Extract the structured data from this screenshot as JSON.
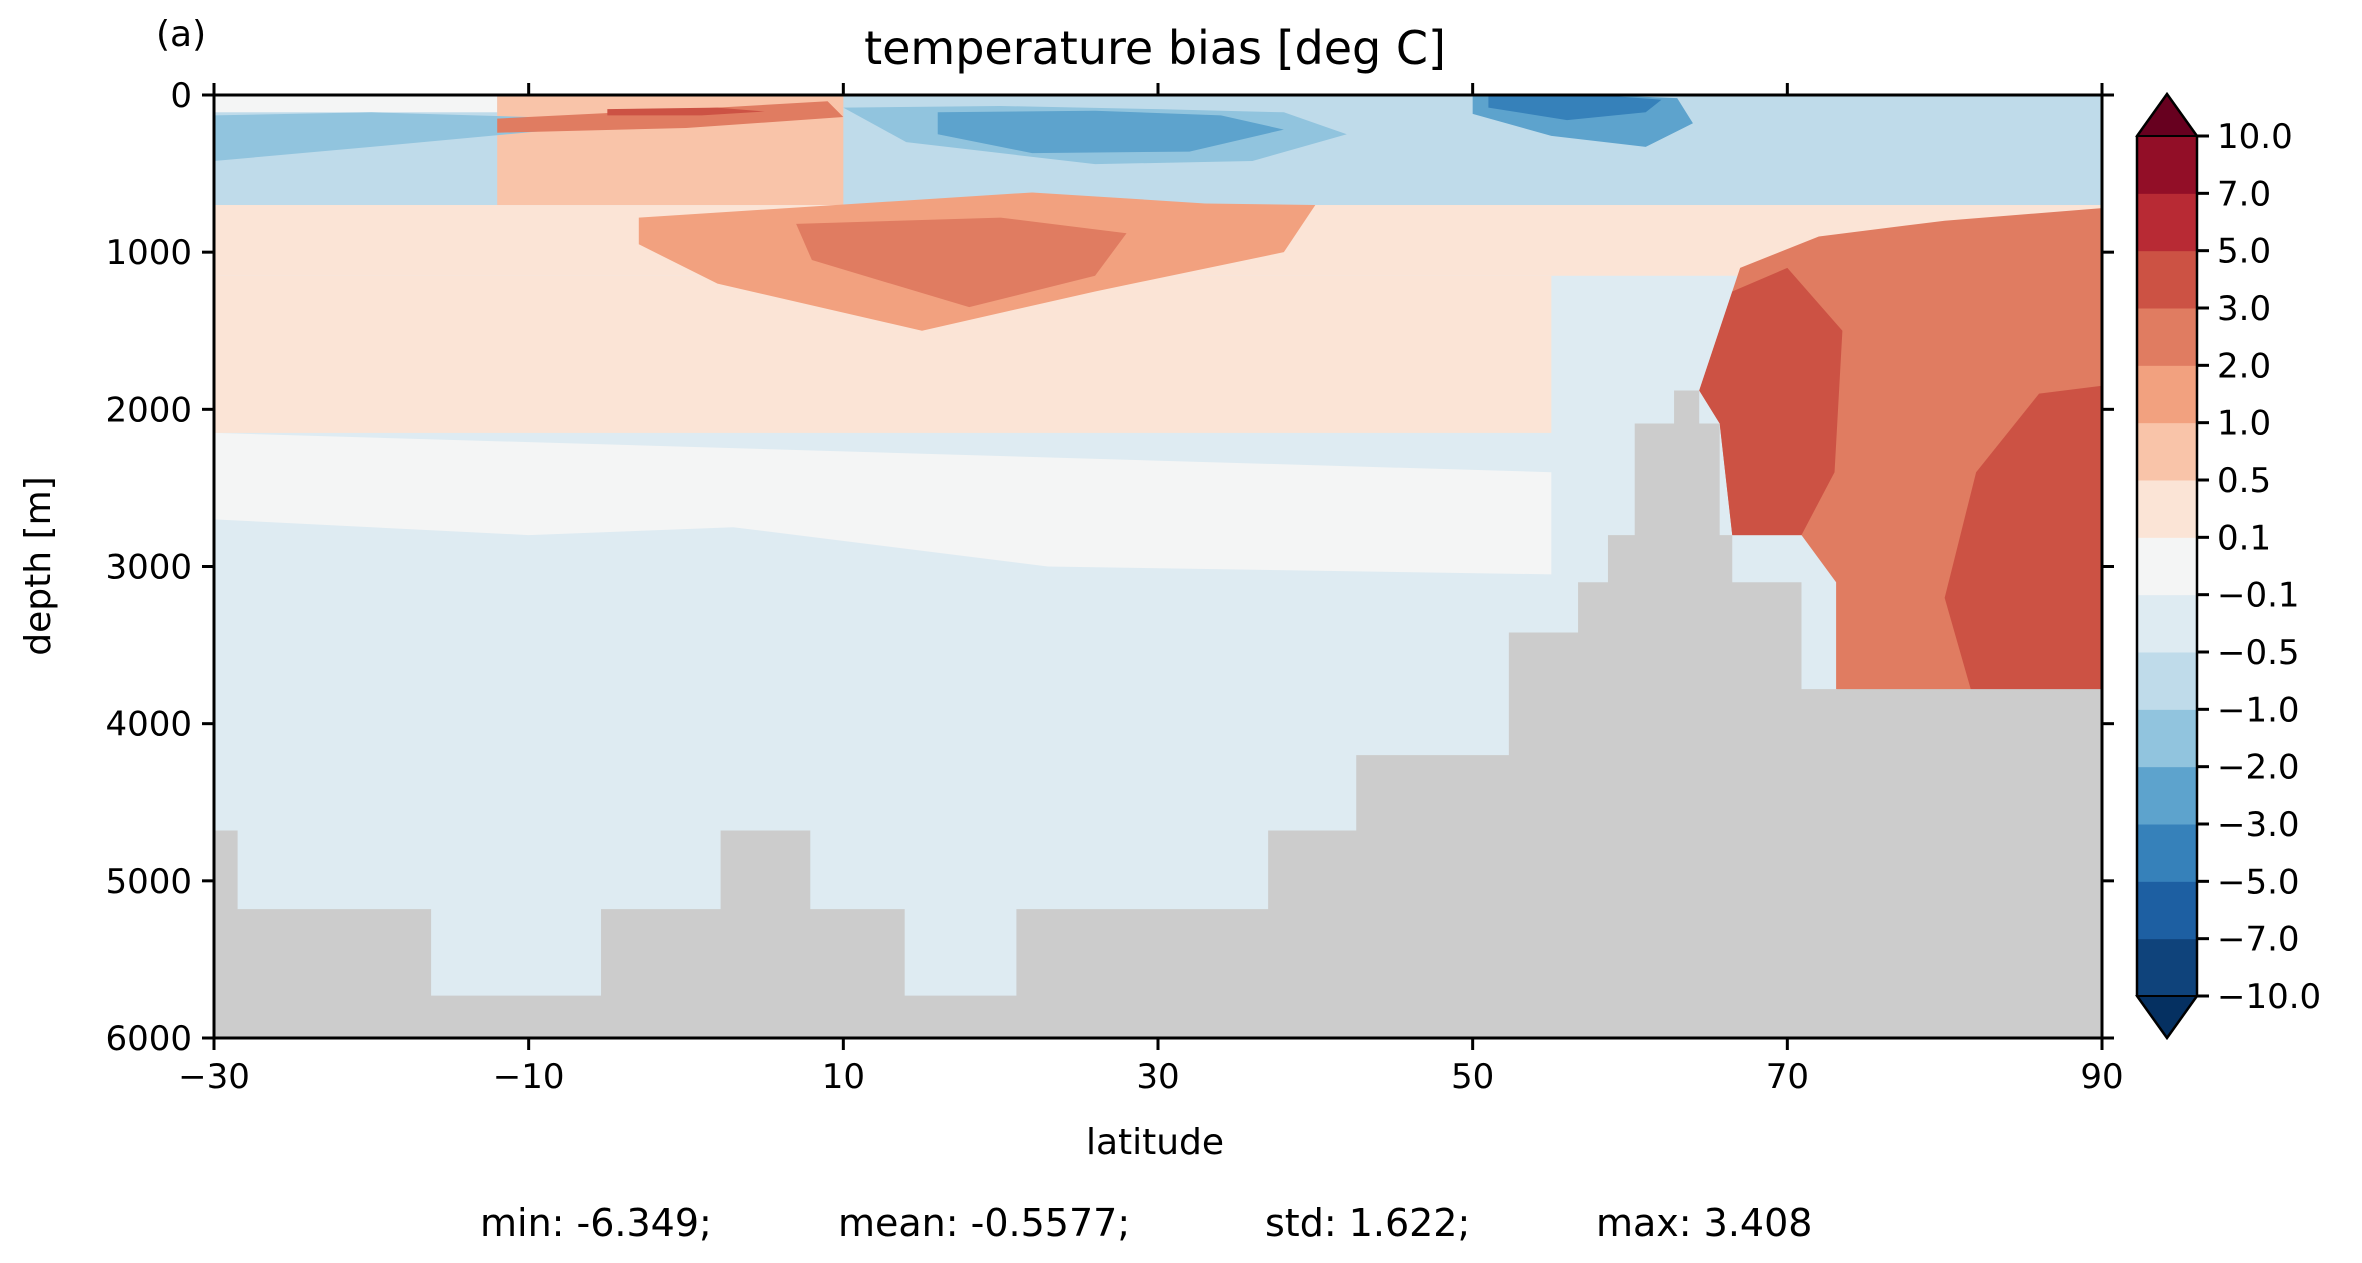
{
  "panel_label": "(a)",
  "stats": {
    "min": "min: -6.349;",
    "mean": "mean: -0.5577;",
    "std": "std: 1.622;",
    "max": "max: 3.408"
  },
  "chart_data": {
    "type": "heatmap",
    "title": "temperature bias [deg C]",
    "xlabel": "latitude",
    "ylabel": "depth [m]",
    "xlim": [
      -30,
      90
    ],
    "ylim": [
      6000,
      0
    ],
    "x_ticks": [
      -30,
      -10,
      10,
      30,
      50,
      70,
      90
    ],
    "x_tick_labels": [
      "−30",
      "−10",
      "10",
      "30",
      "50",
      "70",
      "90"
    ],
    "y_ticks": [
      0,
      1000,
      2000,
      3000,
      4000,
      5000,
      6000
    ],
    "y_tick_labels": [
      "0",
      "1000",
      "2000",
      "3000",
      "4000",
      "5000",
      "6000"
    ],
    "land_color": "#cccccc",
    "colorbar": {
      "levels": [
        -10,
        -7,
        -5,
        -3,
        -2,
        -1,
        -0.5,
        -0.1,
        0.1,
        0.5,
        1,
        2,
        3,
        5,
        7,
        10
      ],
      "labels": [
        "−10.0",
        "−7.0",
        "−5.0",
        "−3.0",
        "−2.0",
        "−1.0",
        "−0.5",
        "−0.1",
        "0.1",
        "0.5",
        "1.0",
        "2.0",
        "3.0",
        "5.0",
        "7.0",
        "10.0"
      ],
      "colors": [
        "#0f437b",
        "#1d5fa2",
        "#3681ba",
        "#5da3cd",
        "#91c4de",
        "#bfdbea",
        "#deebf2",
        "#f4f5f5",
        "#fbe4d6",
        "#f9c4a9",
        "#f2a17f",
        "#e07c61",
        "#cc5244",
        "#b82a34",
        "#920e27"
      ],
      "extend_under": "#053061",
      "extend_over": "#67001f",
      "orientation": "vertical",
      "extend": "both"
    },
    "bathymetry": {
      "lat": [
        -30,
        -28.5,
        -28.5,
        -16.2,
        -16.2,
        -5.4,
        -5.4,
        2.2,
        2.2,
        7.9,
        7.9,
        13.9,
        13.9,
        21,
        21,
        37,
        37,
        42.6,
        42.6,
        52.3,
        52.3,
        56.7,
        56.7,
        58.6,
        58.6,
        60.3,
        60.3,
        62.8,
        62.8,
        64.4,
        64.4,
        65.7,
        65.7,
        66.5,
        66.5,
        70.9,
        70.9,
        73.1,
        73.1,
        83.3,
        83.3,
        90
      ],
      "depth": [
        4680,
        4680,
        5180,
        5180,
        5730,
        5730,
        5180,
        5180,
        4680,
        4680,
        5180,
        5180,
        5730,
        5730,
        5180,
        5180,
        4680,
        4680,
        4200,
        4200,
        3420,
        3420,
        3100,
        3100,
        2800,
        2800,
        2090,
        2090,
        1880,
        1880,
        2090,
        2090,
        2800,
        2800,
        3100,
        3100,
        3780,
        3780,
        3780,
        3780,
        3780,
        3780
      ]
    },
    "regions": [
      {
        "bin": 7,
        "lat": [
          -30,
          55,
          55,
          23,
          15,
          3,
          -10,
          -30
        ],
        "depth": [
          2150,
          2400,
          3050,
          3000,
          2900,
          2750,
          2800,
          2700
        ],
        "shape": "band"
      },
      {
        "bin": 4,
        "lat": [
          -30,
          -20,
          -10,
          -6,
          -20,
          -30
        ],
        "depth": [
          130,
          110,
          140,
          200,
          330,
          420
        ],
        "shape": "blob"
      },
      {
        "bin": 4,
        "lat": [
          10,
          20,
          30,
          38,
          42,
          36,
          26,
          14
        ],
        "depth": [
          80,
          70,
          90,
          110,
          250,
          420,
          440,
          300
        ],
        "shape": "blob"
      },
      {
        "bin": 3,
        "lat": [
          16,
          26,
          34,
          38,
          32,
          22,
          16
        ],
        "depth": [
          110,
          100,
          130,
          220,
          360,
          370,
          250
        ],
        "shape": "blob"
      },
      {
        "bin": 3,
        "lat": [
          50,
          58,
          63,
          64,
          61,
          55,
          50
        ],
        "depth": [
          0,
          0,
          20,
          180,
          330,
          260,
          120
        ],
        "shape": "blob"
      },
      {
        "bin": 2,
        "lat": [
          51,
          58,
          62,
          61,
          56,
          51
        ],
        "depth": [
          0,
          0,
          30,
          110,
          160,
          80
        ],
        "shape": "blob"
      },
      {
        "bin": 11,
        "lat": [
          -12,
          2,
          9,
          10,
          0,
          -12
        ],
        "depth": [
          150,
          80,
          40,
          140,
          210,
          240
        ],
        "shape": "blob"
      },
      {
        "bin": 12,
        "lat": [
          -5,
          2,
          5,
          1,
          -5
        ],
        "depth": [
          90,
          80,
          105,
          130,
          130
        ],
        "shape": "blob"
      },
      {
        "bin": 10,
        "lat": [
          -3,
          22,
          33,
          40,
          38,
          26,
          15,
          2,
          -3
        ],
        "depth": [
          780,
          620,
          690,
          700,
          1000,
          1250,
          1500,
          1200,
          950
        ],
        "shape": "blob"
      },
      {
        "bin": 11,
        "lat": [
          7,
          20,
          28,
          26,
          18,
          8
        ],
        "depth": [
          820,
          780,
          880,
          1150,
          1350,
          1050
        ],
        "shape": "blob"
      },
      {
        "bin": 11,
        "lat": [
          64.4,
          67,
          72,
          80,
          90,
          90,
          83.3,
          73.1,
          73.1,
          70.9,
          66.5,
          65.7,
          64.4
        ],
        "depth": [
          1880,
          1100,
          900,
          800,
          720,
          3780,
          4200,
          3780,
          3100,
          2800,
          2800,
          2090,
          1880
        ],
        "shape": "band"
      },
      {
        "bin": 12,
        "lat": [
          64.4,
          66.5,
          70,
          73.5,
          73,
          70.9,
          66.5,
          65.7,
          64.4
        ],
        "depth": [
          1880,
          1250,
          1100,
          1500,
          2400,
          2800,
          2800,
          2090,
          1880
        ],
        "shape": "blob"
      },
      {
        "bin": 12,
        "lat": [
          82,
          86,
          90,
          90,
          86,
          82,
          80
        ],
        "depth": [
          2400,
          1900,
          1850,
          3780,
          4000,
          3900,
          3200
        ],
        "shape": "blob"
      }
    ]
  }
}
